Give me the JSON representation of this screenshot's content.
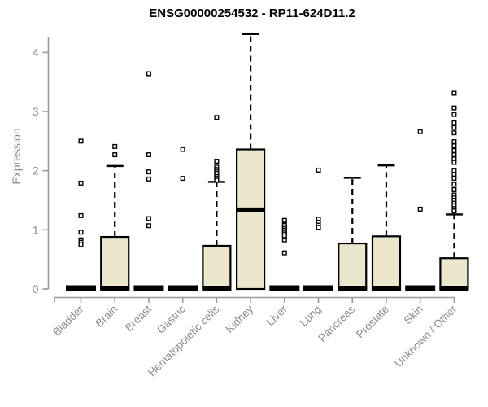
{
  "title": "ENSG00000254532 - RP11-624D11.2",
  "ylabel": "Expression",
  "colors": {
    "box_fill": "#ece6cd",
    "box_stroke": "#000000",
    "median": "#000000",
    "outlier_stroke": "#000000",
    "outlier_fill": "#ffffff",
    "axis": "#9a9a9a",
    "text_gray": "#8c8c8c",
    "title": "#000000"
  },
  "chart_data": {
    "type": "box",
    "title": "ENSG00000254532 - RP11-624D11.2",
    "xlabel": "",
    "ylabel": "Expression",
    "ylim": [
      0,
      4.4
    ],
    "yticks": [
      0,
      1,
      2,
      3,
      4
    ],
    "grid": false,
    "legend": null,
    "categories": [
      "Bladder",
      "Brain",
      "Breast",
      "Gastric",
      "Hematopoietic cells",
      "Kidney",
      "Liver",
      "Lung",
      "Pancreas",
      "Prostate",
      "Skin",
      "Unknown / Other"
    ],
    "series": [
      {
        "category": "Bladder",
        "collapsed": true,
        "q1": 0,
        "median": 0.02,
        "q3": 0.03,
        "whisker_low": 0,
        "whisker_high": 0.03,
        "outliers": [
          2.5,
          1.79,
          1.24,
          0.96,
          0.83,
          0.79,
          0.75
        ]
      },
      {
        "category": "Brain",
        "collapsed": false,
        "q1": 0,
        "median": 0.02,
        "q3": 0.88,
        "whisker_low": 0,
        "whisker_high": 2.08,
        "outliers": [
          2.41,
          2.27
        ]
      },
      {
        "category": "Breast",
        "collapsed": true,
        "q1": 0,
        "median": 0.02,
        "q3": 0.03,
        "whisker_low": 0,
        "whisker_high": 0.03,
        "outliers": [
          3.64,
          2.27,
          1.98,
          1.86,
          1.19,
          1.07
        ]
      },
      {
        "category": "Gastric",
        "collapsed": true,
        "q1": 0,
        "median": 0.02,
        "q3": 0.03,
        "whisker_low": 0,
        "whisker_high": 0.03,
        "outliers": [
          2.36,
          1.87
        ]
      },
      {
        "category": "Hematopoietic cells",
        "collapsed": false,
        "q1": 0,
        "median": 0.02,
        "q3": 0.73,
        "whisker_low": 0,
        "whisker_high": 1.81,
        "outliers": [
          2.9,
          2.16,
          2.06,
          2.02,
          1.99,
          1.96,
          1.93,
          1.9,
          1.87,
          1.84
        ]
      },
      {
        "category": "Kidney",
        "collapsed": false,
        "q1": 0,
        "median": 1.34,
        "q3": 2.36,
        "whisker_low": 0,
        "whisker_high": 4.31,
        "outliers": []
      },
      {
        "category": "Liver",
        "collapsed": true,
        "q1": 0,
        "median": 0.02,
        "q3": 0.03,
        "whisker_low": 0,
        "whisker_high": 0.03,
        "outliers": [
          1.16,
          1.08,
          1.05,
          1.02,
          0.99,
          0.96,
          0.93,
          0.9,
          0.83,
          0.61
        ]
      },
      {
        "category": "Lung",
        "collapsed": true,
        "q1": 0,
        "median": 0.02,
        "q3": 0.03,
        "whisker_low": 0,
        "whisker_high": 0.03,
        "outliers": [
          2.01,
          1.18,
          1.13,
          1.08,
          1.04
        ]
      },
      {
        "category": "Pancreas",
        "collapsed": false,
        "q1": 0,
        "median": 0.02,
        "q3": 0.77,
        "whisker_low": 0,
        "whisker_high": 1.88,
        "outliers": []
      },
      {
        "category": "Prostate",
        "collapsed": false,
        "q1": 0,
        "median": 0.02,
        "q3": 0.89,
        "whisker_low": 0,
        "whisker_high": 2.09,
        "outliers": []
      },
      {
        "category": "Skin",
        "collapsed": true,
        "q1": 0,
        "median": 0.02,
        "q3": 0.03,
        "whisker_low": 0,
        "whisker_high": 0.03,
        "outliers": [
          2.66,
          1.35
        ]
      },
      {
        "category": "Unknown / Other",
        "collapsed": false,
        "q1": 0,
        "median": 0.02,
        "q3": 0.52,
        "whisker_low": 0,
        "whisker_high": 1.26,
        "outliers": [
          3.31,
          3.06,
          2.95,
          2.81,
          2.73,
          2.64,
          2.49,
          2.42,
          2.34,
          2.27,
          2.2,
          2.14,
          2.0,
          1.94,
          1.87,
          1.77,
          1.68,
          1.59,
          1.54,
          1.5,
          1.45,
          1.41,
          1.36,
          1.32
        ]
      }
    ]
  }
}
